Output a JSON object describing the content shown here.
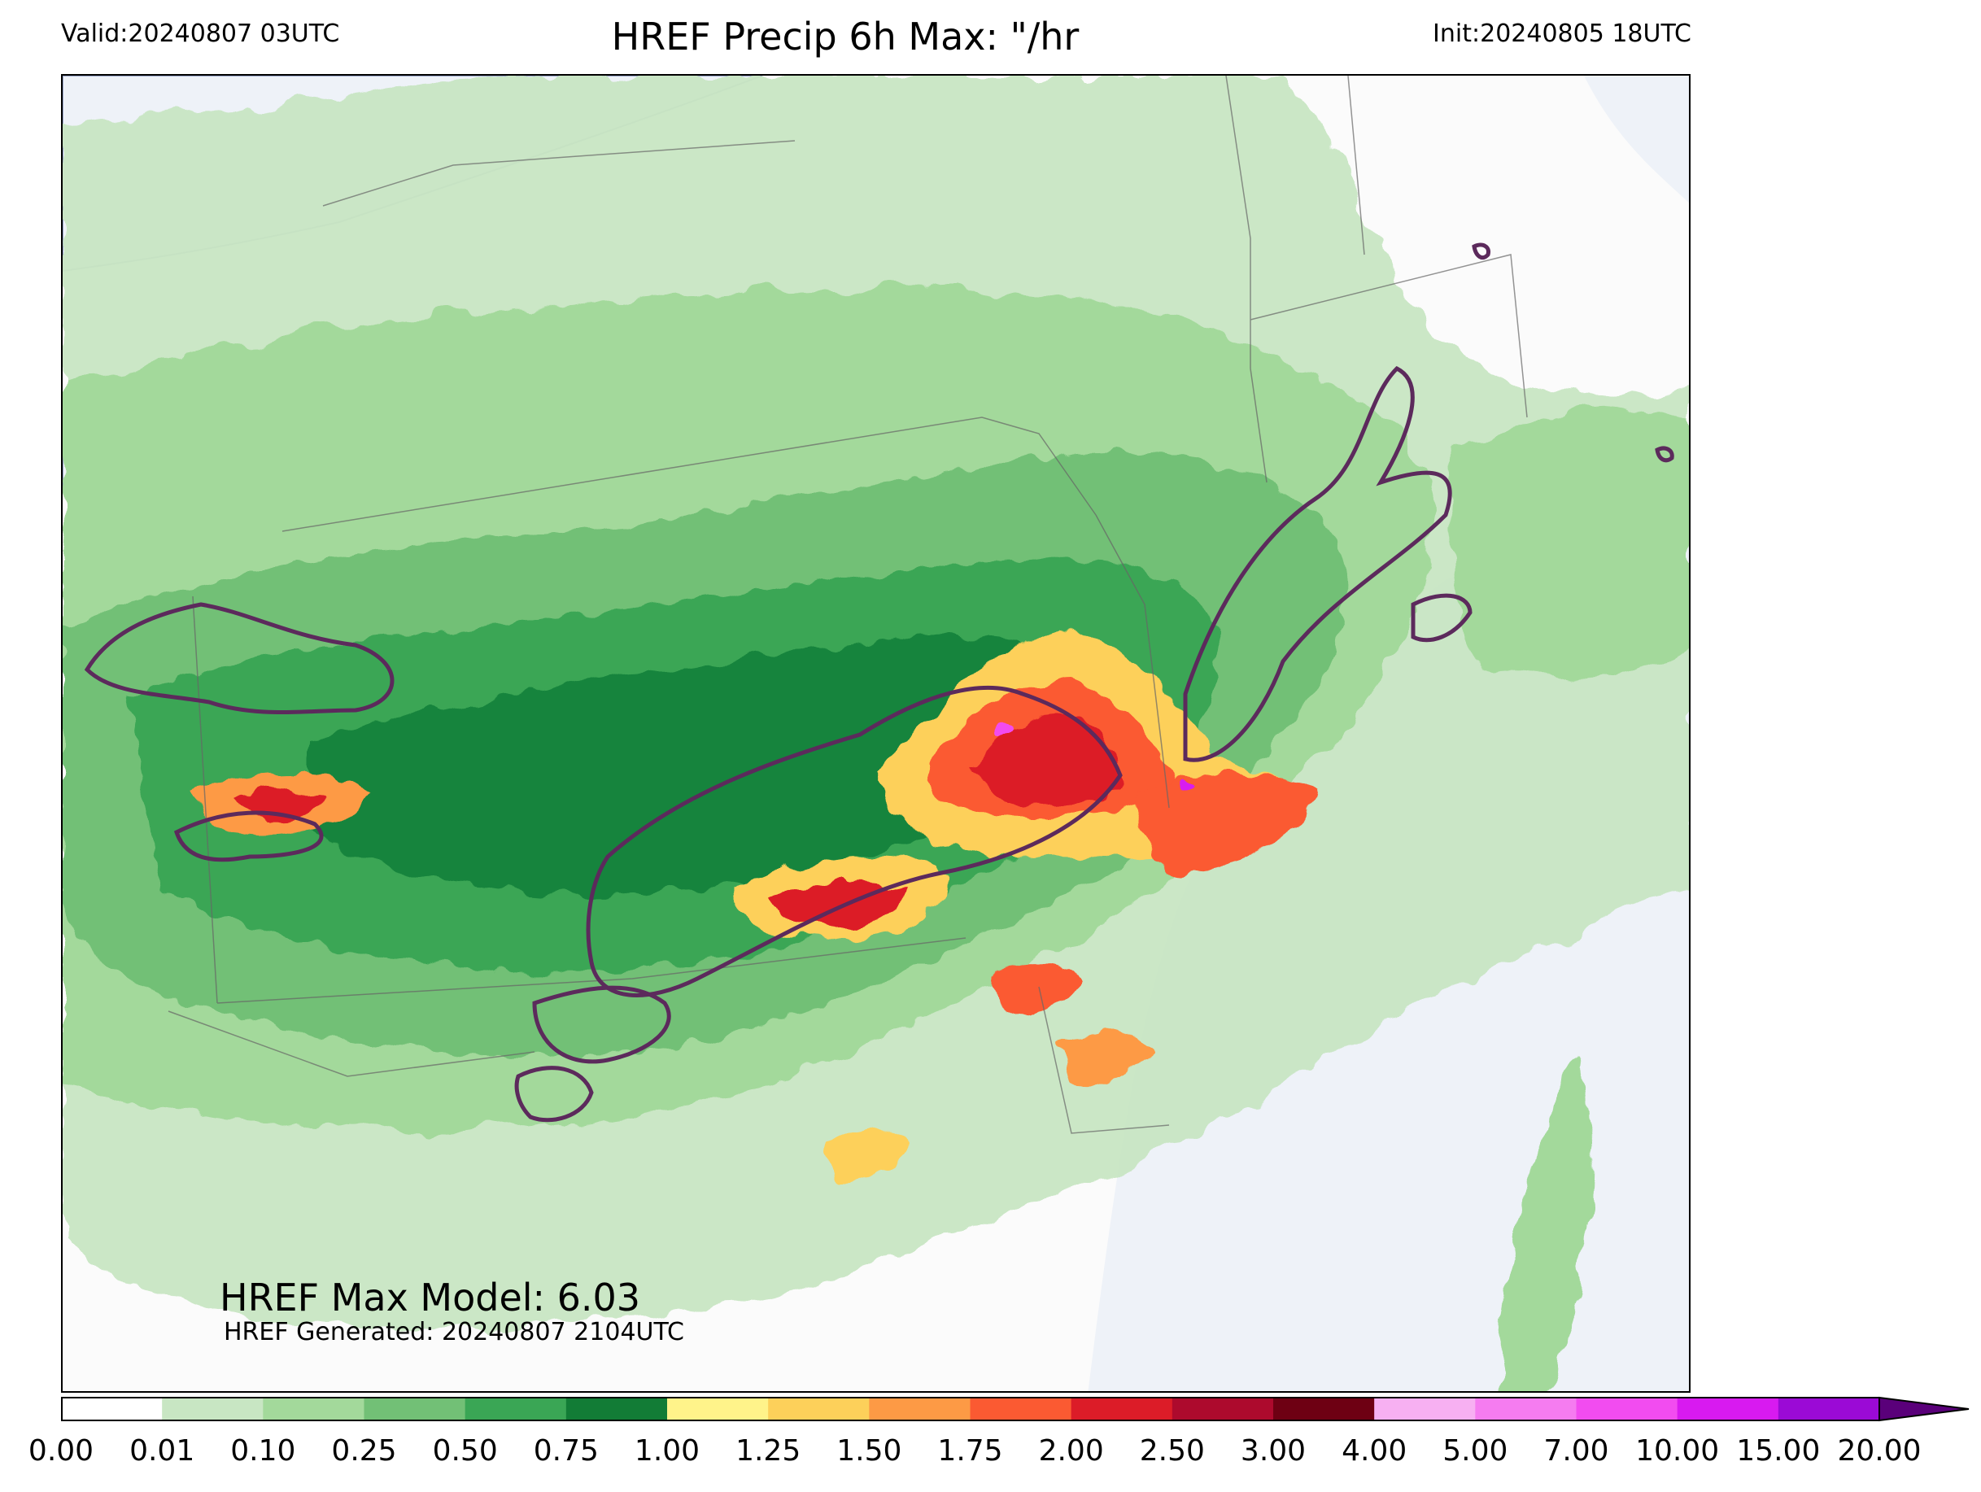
{
  "header": {
    "valid": "Valid:20240807 03UTC",
    "title": "HREF Precip 6h Max: \"/hr",
    "init": "Init:20240805 18UTC"
  },
  "annotations": {
    "max_model": "HREF Max Model: 6.03",
    "generated": "HREF Generated: 20240807 2104UTC"
  },
  "colorbar": {
    "bounds": [
      "0.00",
      "0.01",
      "0.10",
      "0.25",
      "0.50",
      "0.75",
      "1.00",
      "1.25",
      "1.50",
      "1.75",
      "2.00",
      "2.50",
      "3.00",
      "4.00",
      "5.00",
      "7.00",
      "10.00",
      "15.00",
      "20.00"
    ],
    "colors": [
      "#ffffff",
      "#c8e6c3",
      "#a3d99b",
      "#72c076",
      "#3aa655",
      "#127c36",
      "#fff38a",
      "#fdd05a",
      "#fd9a45",
      "#fb5a32",
      "#dc1c28",
      "#ad0a2d",
      "#6e0013",
      "#f7b0f2",
      "#f57cf0",
      "#f24cf0",
      "#d81af0",
      "#9b0ad6"
    ],
    "extend_color": "#5a007a"
  },
  "map": {
    "water_color": "#eef2f8",
    "contour_color": "#5c2a5c",
    "extent_note": "Northeastern United States"
  }
}
